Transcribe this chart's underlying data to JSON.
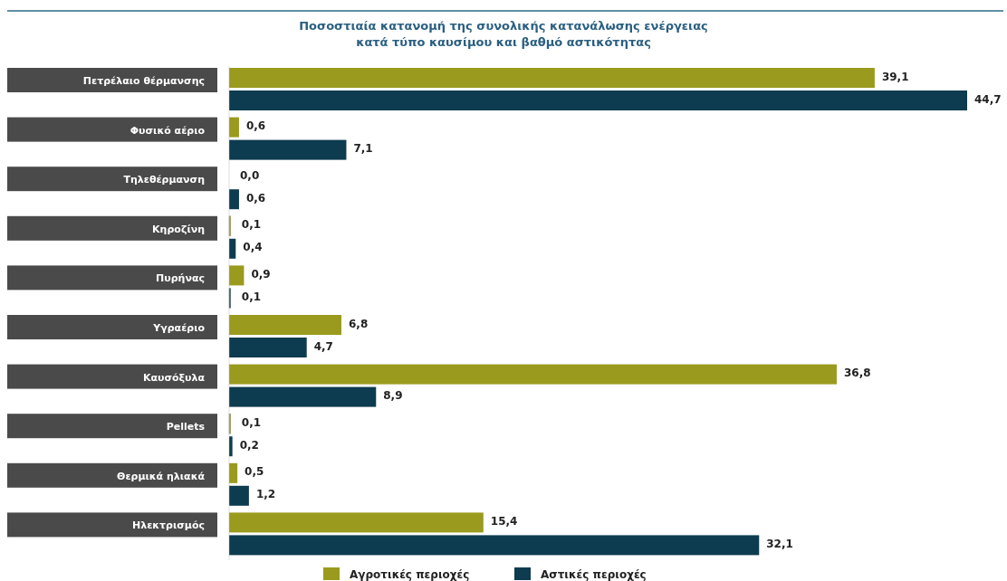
{
  "chart_data": {
    "type": "bar",
    "orientation": "horizontal",
    "title": "Ποσοστιαία κατανομή της συνολικής κατανάλωσης ενέργειας\nκατά τύπο καυσίμου και βαθμό αστικότητας",
    "categories": [
      "Πετρέλαιο θέρμανσης",
      "Φυσικό αέριο",
      "Τηλεθέρμανση",
      "Κηροζίνη",
      "Πυρήνας",
      "Υγραέριο",
      "Καυσόξυλα",
      "Pellets",
      "Θερμικά ηλιακά",
      "Ηλεκτρισμός"
    ],
    "series": [
      {
        "name": "Αγροτικές περιοχές",
        "color": "#9a9a1e",
        "values": [
          39.1,
          0.6,
          0.0,
          0.1,
          0.9,
          6.8,
          36.8,
          0.1,
          0.5,
          15.4
        ],
        "value_labels": [
          "39,1",
          "0,6",
          "0,0",
          "0,1",
          "0,9",
          "6,8",
          "36,8",
          "0,1",
          "0,5",
          "15,4"
        ]
      },
      {
        "name": "Αστικές περιοχές",
        "color": "#0d3b4f",
        "values": [
          44.7,
          7.1,
          0.6,
          0.4,
          0.1,
          4.7,
          8.9,
          0.2,
          1.2,
          32.1
        ],
        "value_labels": [
          "44,7",
          "7,1",
          "0,6",
          "0,4",
          "0,1",
          "4,7",
          "8,9",
          "0,2",
          "1,2",
          "32,1"
        ]
      }
    ],
    "legend": "bottom"
  }
}
